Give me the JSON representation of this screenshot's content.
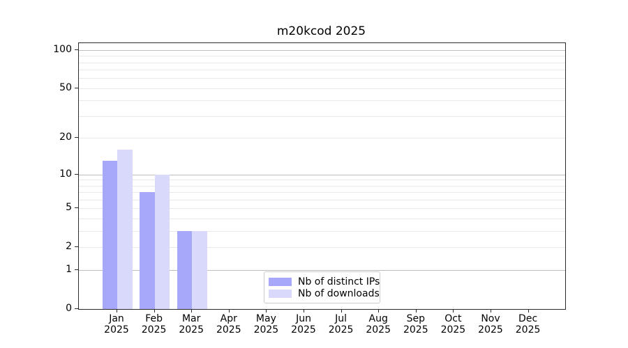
{
  "chart_data": {
    "type": "bar",
    "title": "m20kcod 2025",
    "categories": [
      "Jan 2025",
      "Feb 2025",
      "Mar 2025",
      "Apr 2025",
      "May 2025",
      "Jun 2025",
      "Jul 2025",
      "Aug 2025",
      "Sep 2025",
      "Oct 2025",
      "Nov 2025",
      "Dec 2025"
    ],
    "series": [
      {
        "name": "Nb of distinct IPs",
        "color": "#a8a8fa",
        "values": [
          13,
          7,
          3,
          0,
          0,
          0,
          0,
          0,
          0,
          0,
          0,
          0
        ]
      },
      {
        "name": "Nb of downloads",
        "color": "#d9d9fb",
        "values": [
          16,
          10,
          3,
          0,
          0,
          0,
          0,
          0,
          0,
          0,
          0,
          0
        ]
      }
    ],
    "xlabel": "",
    "ylabel": "",
    "y_scale": "log1p",
    "ylim": [
      0,
      113
    ],
    "y_ticks": [
      0,
      1,
      2,
      5,
      10,
      20,
      50,
      100
    ],
    "grid": {
      "major": [
        1,
        10,
        100
      ],
      "minor": [
        2,
        3,
        4,
        5,
        6,
        7,
        8,
        9,
        20,
        30,
        40,
        50,
        60,
        70,
        80,
        90
      ],
      "major_color": "#bdbdbd",
      "minor_color": "#e9e9e9"
    },
    "legend": {
      "position": "lower center"
    }
  }
}
